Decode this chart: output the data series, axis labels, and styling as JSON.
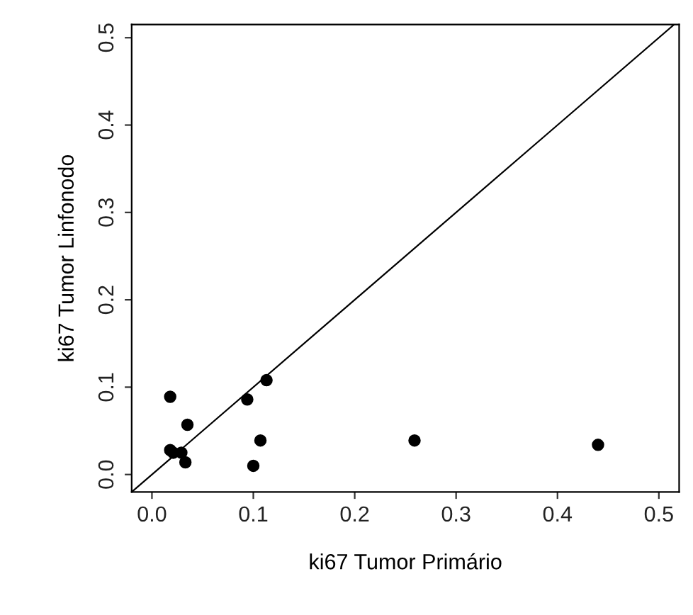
{
  "chart_data": {
    "type": "scatter",
    "xlabel": "ki67 Tumor Primário",
    "ylabel": "ki67 Tumor Linfonodo",
    "xlim": [
      -0.02,
      0.52
    ],
    "ylim": [
      -0.02,
      0.515
    ],
    "xticks": [
      {
        "value": 0,
        "label": "0.0"
      },
      0.1,
      0.2,
      0.3,
      0.4,
      0.5
    ],
    "yticks": [
      {
        "value": 0,
        "label": "0.0"
      },
      0.1,
      0.2,
      0.3,
      0.4,
      0.5
    ],
    "grid": false,
    "legend": false,
    "marker": "circle",
    "series": [
      {
        "color": "#000000",
        "x": [
          0.018,
          0.113,
          0.094,
          0.035,
          0.107,
          0.259,
          0.44,
          0.018,
          0.021,
          0.029,
          0.033,
          0.1
        ],
        "values": [
          0.089,
          0.108,
          0.086,
          0.057,
          0.039,
          0.039,
          0.034,
          0.028,
          0.025,
          0.025,
          0.014,
          0.01
        ]
      },
      {
        "type": "line",
        "color": "#000000",
        "line_style": "solid",
        "marker": "none",
        "x": [
          -0.02,
          0.515
        ],
        "values": [
          -0.02,
          0.515
        ]
      }
    ]
  }
}
